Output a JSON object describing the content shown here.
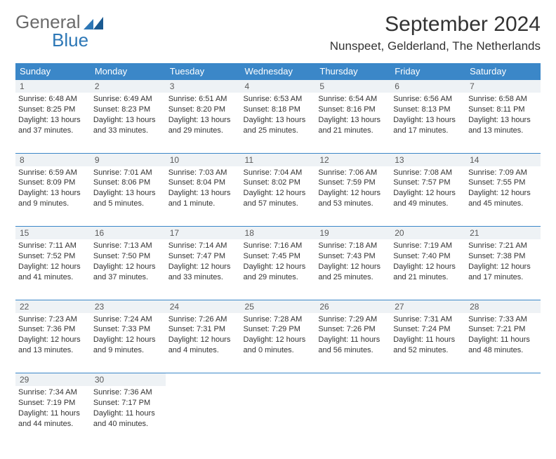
{
  "logo": {
    "part1": "General",
    "part2": "Blue"
  },
  "title": "September 2024",
  "location": "Nunspeet, Gelderland, The Netherlands",
  "colors": {
    "header_bg": "#3b87c8",
    "header_text": "#ffffff",
    "daynum_bg": "#eef2f5",
    "rule": "#3b87c8",
    "text": "#333333",
    "logo_gray": "#6b6b6b",
    "logo_blue": "#2d77b6",
    "page_bg": "#ffffff"
  },
  "typography": {
    "title_fontsize": 30,
    "location_fontsize": 17,
    "dayhead_fontsize": 13,
    "cell_fontsize": 11,
    "logo_fontsize": 26
  },
  "day_names": [
    "Sunday",
    "Monday",
    "Tuesday",
    "Wednesday",
    "Thursday",
    "Friday",
    "Saturday"
  ],
  "weeks": [
    [
      {
        "num": "1",
        "sunrise": "Sunrise: 6:48 AM",
        "sunset": "Sunset: 8:25 PM",
        "daylight": "Daylight: 13 hours and 37 minutes."
      },
      {
        "num": "2",
        "sunrise": "Sunrise: 6:49 AM",
        "sunset": "Sunset: 8:23 PM",
        "daylight": "Daylight: 13 hours and 33 minutes."
      },
      {
        "num": "3",
        "sunrise": "Sunrise: 6:51 AM",
        "sunset": "Sunset: 8:20 PM",
        "daylight": "Daylight: 13 hours and 29 minutes."
      },
      {
        "num": "4",
        "sunrise": "Sunrise: 6:53 AM",
        "sunset": "Sunset: 8:18 PM",
        "daylight": "Daylight: 13 hours and 25 minutes."
      },
      {
        "num": "5",
        "sunrise": "Sunrise: 6:54 AM",
        "sunset": "Sunset: 8:16 PM",
        "daylight": "Daylight: 13 hours and 21 minutes."
      },
      {
        "num": "6",
        "sunrise": "Sunrise: 6:56 AM",
        "sunset": "Sunset: 8:13 PM",
        "daylight": "Daylight: 13 hours and 17 minutes."
      },
      {
        "num": "7",
        "sunrise": "Sunrise: 6:58 AM",
        "sunset": "Sunset: 8:11 PM",
        "daylight": "Daylight: 13 hours and 13 minutes."
      }
    ],
    [
      {
        "num": "8",
        "sunrise": "Sunrise: 6:59 AM",
        "sunset": "Sunset: 8:09 PM",
        "daylight": "Daylight: 13 hours and 9 minutes."
      },
      {
        "num": "9",
        "sunrise": "Sunrise: 7:01 AM",
        "sunset": "Sunset: 8:06 PM",
        "daylight": "Daylight: 13 hours and 5 minutes."
      },
      {
        "num": "10",
        "sunrise": "Sunrise: 7:03 AM",
        "sunset": "Sunset: 8:04 PM",
        "daylight": "Daylight: 13 hours and 1 minute."
      },
      {
        "num": "11",
        "sunrise": "Sunrise: 7:04 AM",
        "sunset": "Sunset: 8:02 PM",
        "daylight": "Daylight: 12 hours and 57 minutes."
      },
      {
        "num": "12",
        "sunrise": "Sunrise: 7:06 AM",
        "sunset": "Sunset: 7:59 PM",
        "daylight": "Daylight: 12 hours and 53 minutes."
      },
      {
        "num": "13",
        "sunrise": "Sunrise: 7:08 AM",
        "sunset": "Sunset: 7:57 PM",
        "daylight": "Daylight: 12 hours and 49 minutes."
      },
      {
        "num": "14",
        "sunrise": "Sunrise: 7:09 AM",
        "sunset": "Sunset: 7:55 PM",
        "daylight": "Daylight: 12 hours and 45 minutes."
      }
    ],
    [
      {
        "num": "15",
        "sunrise": "Sunrise: 7:11 AM",
        "sunset": "Sunset: 7:52 PM",
        "daylight": "Daylight: 12 hours and 41 minutes."
      },
      {
        "num": "16",
        "sunrise": "Sunrise: 7:13 AM",
        "sunset": "Sunset: 7:50 PM",
        "daylight": "Daylight: 12 hours and 37 minutes."
      },
      {
        "num": "17",
        "sunrise": "Sunrise: 7:14 AM",
        "sunset": "Sunset: 7:47 PM",
        "daylight": "Daylight: 12 hours and 33 minutes."
      },
      {
        "num": "18",
        "sunrise": "Sunrise: 7:16 AM",
        "sunset": "Sunset: 7:45 PM",
        "daylight": "Daylight: 12 hours and 29 minutes."
      },
      {
        "num": "19",
        "sunrise": "Sunrise: 7:18 AM",
        "sunset": "Sunset: 7:43 PM",
        "daylight": "Daylight: 12 hours and 25 minutes."
      },
      {
        "num": "20",
        "sunrise": "Sunrise: 7:19 AM",
        "sunset": "Sunset: 7:40 PM",
        "daylight": "Daylight: 12 hours and 21 minutes."
      },
      {
        "num": "21",
        "sunrise": "Sunrise: 7:21 AM",
        "sunset": "Sunset: 7:38 PM",
        "daylight": "Daylight: 12 hours and 17 minutes."
      }
    ],
    [
      {
        "num": "22",
        "sunrise": "Sunrise: 7:23 AM",
        "sunset": "Sunset: 7:36 PM",
        "daylight": "Daylight: 12 hours and 13 minutes."
      },
      {
        "num": "23",
        "sunrise": "Sunrise: 7:24 AM",
        "sunset": "Sunset: 7:33 PM",
        "daylight": "Daylight: 12 hours and 9 minutes."
      },
      {
        "num": "24",
        "sunrise": "Sunrise: 7:26 AM",
        "sunset": "Sunset: 7:31 PM",
        "daylight": "Daylight: 12 hours and 4 minutes."
      },
      {
        "num": "25",
        "sunrise": "Sunrise: 7:28 AM",
        "sunset": "Sunset: 7:29 PM",
        "daylight": "Daylight: 12 hours and 0 minutes."
      },
      {
        "num": "26",
        "sunrise": "Sunrise: 7:29 AM",
        "sunset": "Sunset: 7:26 PM",
        "daylight": "Daylight: 11 hours and 56 minutes."
      },
      {
        "num": "27",
        "sunrise": "Sunrise: 7:31 AM",
        "sunset": "Sunset: 7:24 PM",
        "daylight": "Daylight: 11 hours and 52 minutes."
      },
      {
        "num": "28",
        "sunrise": "Sunrise: 7:33 AM",
        "sunset": "Sunset: 7:21 PM",
        "daylight": "Daylight: 11 hours and 48 minutes."
      }
    ],
    [
      {
        "num": "29",
        "sunrise": "Sunrise: 7:34 AM",
        "sunset": "Sunset: 7:19 PM",
        "daylight": "Daylight: 11 hours and 44 minutes."
      },
      {
        "num": "30",
        "sunrise": "Sunrise: 7:36 AM",
        "sunset": "Sunset: 7:17 PM",
        "daylight": "Daylight: 11 hours and 40 minutes."
      },
      null,
      null,
      null,
      null,
      null
    ]
  ]
}
